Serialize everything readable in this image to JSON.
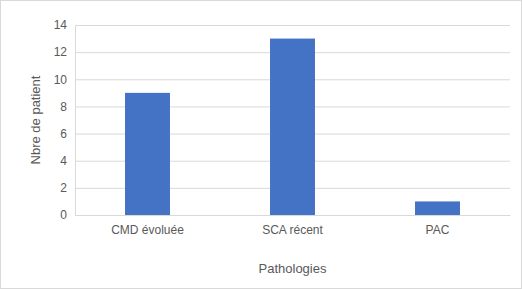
{
  "chart_data": {
    "type": "bar",
    "x_label": "Pathologies",
    "y_label": "Nbre de patient",
    "categories": [
      "CMD évoluée",
      "SCA récent",
      "PAC"
    ],
    "values": [
      9,
      13,
      1
    ],
    "color": "#4472c4",
    "ylim": [
      0,
      14
    ],
    "yticks": [
      0,
      2,
      4,
      6,
      8,
      10,
      12,
      14
    ],
    "grid": true
  }
}
